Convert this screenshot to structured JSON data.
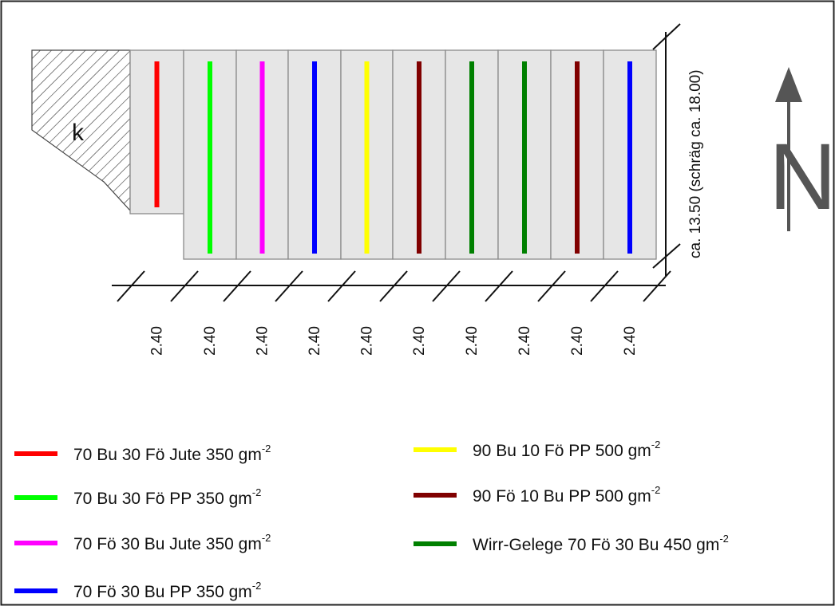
{
  "area_label": "k",
  "side_dimension": "ca. 13.50 (schräg ca. 18.00)",
  "widths": [
    "2.40",
    "2.40",
    "2.40",
    "2.40",
    "2.40",
    "2.40",
    "2.40",
    "2.40",
    "2.40",
    "2.40"
  ],
  "plots": [
    {
      "color": "#ff0000"
    },
    {
      "color": "#00ff00"
    },
    {
      "color": "#ff00ff"
    },
    {
      "color": "#0000ff"
    },
    {
      "color": "#ffff00"
    },
    {
      "color": "#800000"
    },
    {
      "color": "#008000"
    },
    {
      "color": "#008000"
    },
    {
      "color": "#800000"
    },
    {
      "color": "#0000ff"
    }
  ],
  "north": {
    "label": "N",
    "icon": "north-arrow-icon"
  },
  "legend": [
    {
      "text": "70 Bu 30 Fö Jute 350 gm",
      "sup": "-2",
      "color": "#ff0000"
    },
    {
      "text": "70 Bu 30 Fö PP 350 gm",
      "sup": "-2",
      "color": "#00ff00"
    },
    {
      "text": "70 Fö 30 Bu Jute 350 gm",
      "sup": "-2",
      "color": "#ff00ff"
    },
    {
      "text": "70 Fö 30 Bu PP 350 gm",
      "sup": "-2",
      "color": "#0000ff"
    },
    {
      "text": "90 Bu 10 Fö PP 500 gm",
      "sup": "-2",
      "color": "#ffff00"
    },
    {
      "text": "90 Fö 10 Bu PP 500 gm",
      "sup": "-2",
      "color": "#800000"
    },
    {
      "text": "Wirr-Gelege 70 Fö 30 Bu 450 gm",
      "sup": "-2",
      "color": "#008000"
    }
  ]
}
